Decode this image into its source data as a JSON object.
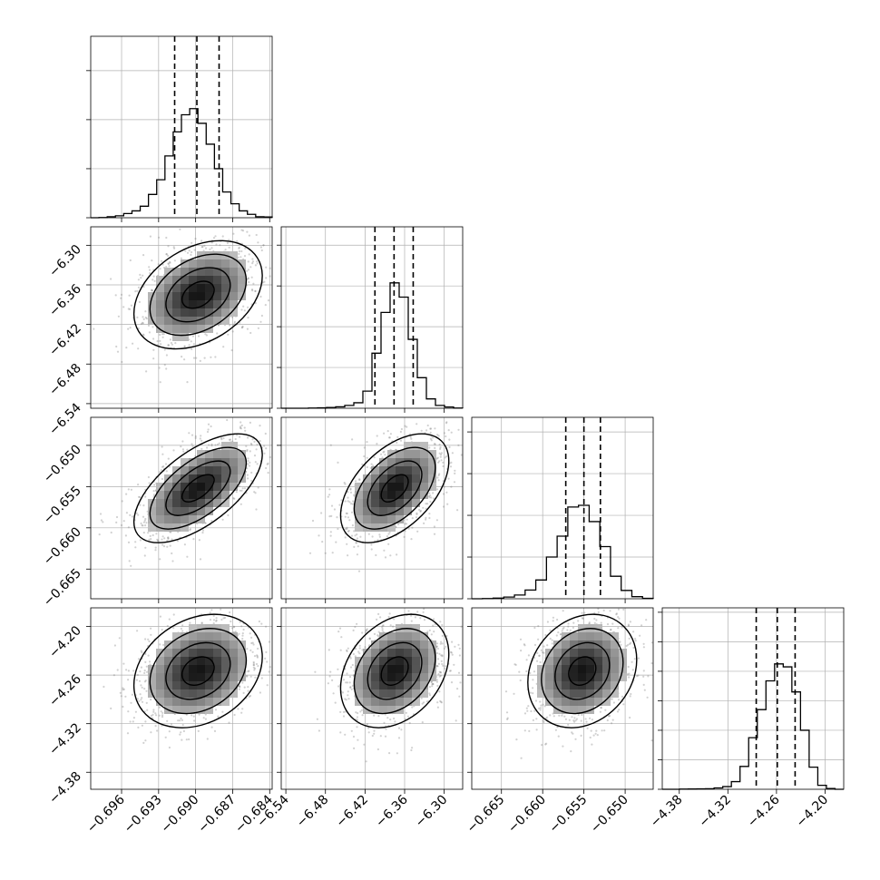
{
  "chart_data": {
    "type": "corner",
    "title": "",
    "params": [
      {
        "range": [
          -0.6985,
          -0.6838
        ],
        "ticks": [
          -0.696,
          -0.693,
          -0.69,
          -0.687,
          -0.684
        ],
        "tick_labels": [
          "−0.696",
          "−0.693",
          "−0.690",
          "−0.687",
          "−0.684"
        ],
        "quantiles": [
          -0.6917,
          -0.6899,
          -0.6881
        ],
        "hist": [
          0,
          1,
          4,
          8,
          17,
          28,
          47,
          95,
          155,
          252,
          350,
          420,
          445,
          385,
          300,
          200,
          105,
          57,
          28,
          14,
          4,
          3
        ],
        "hist_ticks": [
          0,
          200,
          400,
          600
        ],
        "hist_max": 740
      },
      {
        "range": [
          -6.547,
          -6.272
        ],
        "ticks": [
          -6.54,
          -6.48,
          -6.42,
          -6.36,
          -6.3
        ],
        "tick_labels": [
          "−6.54",
          "−6.48",
          "−6.42",
          "−6.36",
          "−6.30"
        ],
        "quantiles": [
          -6.405,
          -6.376,
          -6.347
        ],
        "hist": [
          0,
          0,
          0,
          1,
          2,
          4,
          7,
          14,
          27,
          84,
          270,
          470,
          615,
          545,
          338,
          150,
          46,
          14,
          6,
          1
        ],
        "hist_ticks": [
          0,
          200,
          400,
          600,
          800
        ],
        "hist_max": 890
      },
      {
        "range": [
          -0.6686,
          -0.6466
        ],
        "ticks": [
          -0.665,
          -0.66,
          -0.655,
          -0.65
        ],
        "tick_labels": [
          "−0.665",
          "−0.660",
          "−0.655",
          "−0.650"
        ],
        "quantiles": [
          -0.6572,
          -0.655,
          -0.653
        ],
        "hist": [
          0,
          1,
          3,
          8,
          18,
          42,
          90,
          200,
          300,
          440,
          448,
          370,
          250,
          108,
          40,
          10,
          2
        ],
        "hist_ticks": [
          0,
          200,
          400,
          600,
          800
        ],
        "hist_max": 870
      },
      {
        "range": [
          -4.401,
          -4.177
        ],
        "ticks": [
          -4.38,
          -4.32,
          -4.26,
          -4.2
        ],
        "tick_labels": [
          "−4.38",
          "−4.32",
          "−4.26",
          "−4.20"
        ],
        "quantiles": [
          -4.285,
          -4.259,
          -4.237
        ],
        "hist": [
          0,
          0,
          1,
          2,
          3,
          4,
          9,
          18,
          52,
          155,
          350,
          540,
          735,
          850,
          830,
          660,
          400,
          150,
          27,
          5,
          0
        ],
        "hist_ticks": [
          0,
          200,
          400,
          600,
          800,
          1000,
          1200
        ],
        "hist_max": 1230
      }
    ],
    "pairs": [
      {
        "row": 1,
        "col": 0,
        "mean": [
          -0.6898,
          -6.375
        ],
        "sd": [
          0.0026,
          0.041
        ],
        "rho": 0.35
      },
      {
        "row": 2,
        "col": 0,
        "mean": [
          -0.6898,
          -0.6552
        ],
        "sd": [
          0.0026,
          0.0033
        ],
        "rho": 0.62
      },
      {
        "row": 2,
        "col": 1,
        "mean": [
          -6.375,
          -0.6552
        ],
        "sd": [
          0.041,
          0.0033
        ],
        "rho": 0.5
      },
      {
        "row": 3,
        "col": 0,
        "mean": [
          -0.6898,
          -4.255
        ],
        "sd": [
          0.0026,
          0.035
        ],
        "rho": 0.25
      },
      {
        "row": 3,
        "col": 1,
        "mean": [
          -6.375,
          -4.255
        ],
        "sd": [
          0.041,
          0.035
        ],
        "rho": 0.3
      },
      {
        "row": 3,
        "col": 2,
        "mean": [
          -0.6552,
          -4.255
        ],
        "sd": [
          0.0033,
          0.035
        ],
        "rho": 0.2
      }
    ],
    "contour_levels_sigma": [
      0.5,
      1.0,
      1.5,
      2.0
    ],
    "grid": true,
    "legend": "none",
    "colors": {
      "line": "#000000",
      "grid": "#b0b0b0",
      "scatter": "#7a7a7a"
    }
  }
}
